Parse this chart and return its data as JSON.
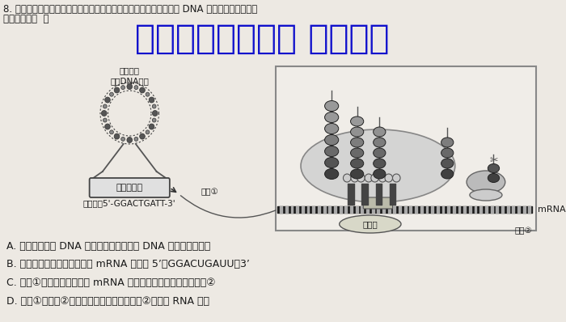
{
  "bg_color": "#ede9e3",
  "question_text_line1": "8. 如图为蓝细菌拟核上的呼吸酶基因表达过程示意图，其中编码链与 DNA 分子转录的模板链互",
  "question_text_line2": "补，图中的（  ）",
  "watermark": "微信公众号关注： 趣找答案",
  "watermark_color": "#1010cc",
  "label_dna": "蓝细菌的\n环形DNA分子",
  "label_gene": "呼吸酶基因",
  "label_coding": "编码链：5'-GGACTGATT-3'",
  "label_process1": "过程①",
  "label_mrna": "mRNA",
  "label_codon": "密码子",
  "label_process2": "过程②",
  "option_A": "A. 蓝细菌的环形 DNA 单独存在，不会形成 DNA －蛋白质复合体",
  "option_B": "B. 图示部分基因序列转录出的 mRNA 序列为 5’－GGACUGAUU－3’",
  "option_C": "C. 过程①结束后形成的成熟 mRNA 会与核糖体结合开始进行过程②",
  "option_D": "D. 过程①和过程②都存在碱基互补配对，过程②有两种 RNA 参与",
  "text_color": "#1a1a1a",
  "font_size_question": 8.5,
  "font_size_options": 9.0,
  "font_size_labels": 7.5,
  "font_size_watermark": 30
}
